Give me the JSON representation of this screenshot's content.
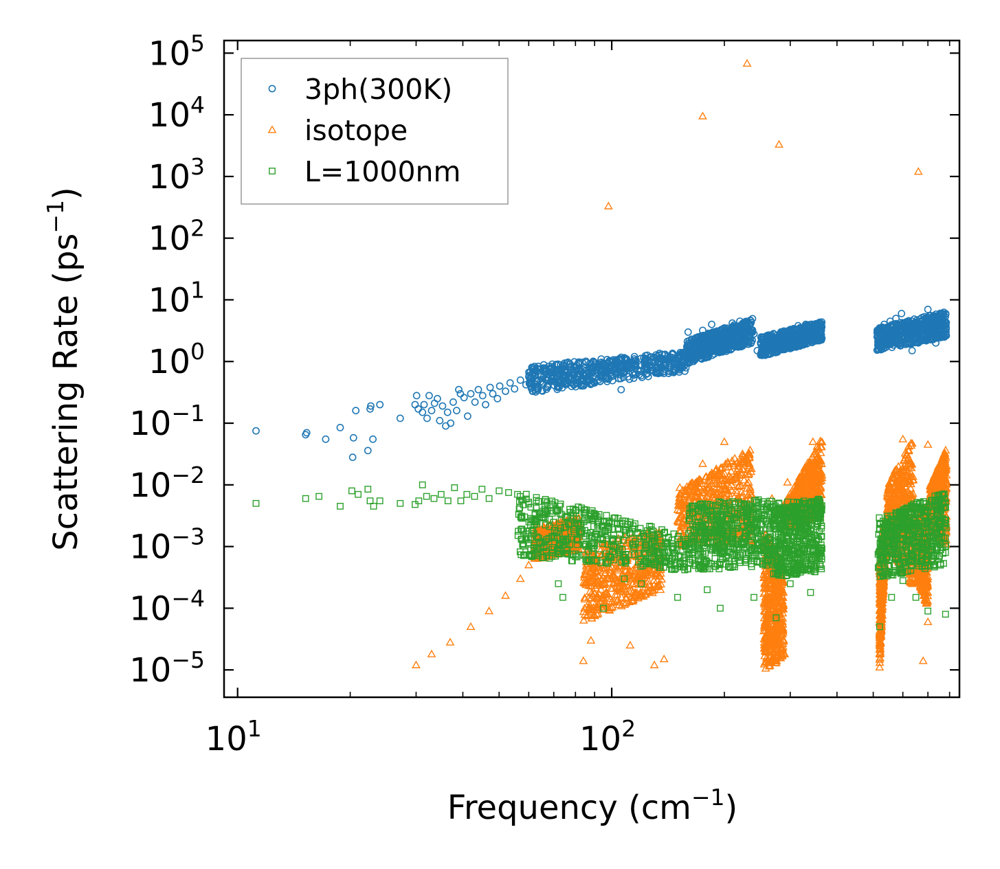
{
  "chart_data": {
    "type": "scatter",
    "title": "",
    "xlabel": "Frequency (cm",
    "xlabel_sup": "−1",
    "xlabel_end": ")",
    "ylabel": "Scattering Rate (ps",
    "ylabel_sup": "−1",
    "ylabel_end": ")",
    "xscale": "log",
    "yscale": "log",
    "xlim": [
      9.2,
      850
    ],
    "ylim": [
      3.6e-06,
      160000.0
    ],
    "grid": false,
    "legend_position": "top-left",
    "x_ticks": [
      {
        "value": 10,
        "base": "10",
        "exp": "1"
      },
      {
        "value": 100,
        "base": "10",
        "exp": "2"
      }
    ],
    "y_ticks": [
      {
        "value": 1e-05,
        "base": "10",
        "exp": "−5"
      },
      {
        "value": 0.0001,
        "base": "10",
        "exp": "−4"
      },
      {
        "value": 0.001,
        "base": "10",
        "exp": "−3"
      },
      {
        "value": 0.01,
        "base": "10",
        "exp": "−2"
      },
      {
        "value": 0.1,
        "base": "10",
        "exp": "−1"
      },
      {
        "value": 1.0,
        "base": "10",
        "exp": "0"
      },
      {
        "value": 10.0,
        "base": "10",
        "exp": "1"
      },
      {
        "value": 100.0,
        "base": "10",
        "exp": "2"
      },
      {
        "value": 1000.0,
        "base": "10",
        "exp": "3"
      },
      {
        "value": 10000.0,
        "base": "10",
        "exp": "4"
      },
      {
        "value": 100000.0,
        "base": "10",
        "exp": "5"
      }
    ],
    "series": [
      {
        "name": "3ph(300K)",
        "marker": "circle",
        "color": "#1f77b4",
        "points": [
          [
            11.2,
            0.075
          ],
          [
            15.2,
            0.065
          ],
          [
            15.3,
            0.07
          ],
          [
            17.2,
            0.055
          ],
          [
            18.8,
            0.085
          ],
          [
            20.3,
            0.028
          ],
          [
            20.4,
            0.058
          ],
          [
            20.7,
            0.16
          ],
          [
            22.3,
            0.036
          ],
          [
            22.6,
            0.17
          ],
          [
            22.7,
            0.19
          ],
          [
            23.0,
            0.055
          ],
          [
            24.0,
            0.2
          ],
          [
            27.2,
            0.12
          ],
          [
            29.8,
            0.2
          ],
          [
            30.1,
            0.28
          ],
          [
            30.4,
            0.17
          ],
          [
            31.2,
            0.15
          ],
          [
            31.5,
            0.2
          ],
          [
            32.1,
            0.12
          ],
          [
            32.5,
            0.28
          ],
          [
            33.0,
            0.16
          ],
          [
            33.6,
            0.21
          ],
          [
            34.2,
            0.25
          ],
          [
            34.7,
            0.11
          ],
          [
            35.3,
            0.19
          ],
          [
            36.0,
            0.09
          ],
          [
            36.4,
            0.15
          ],
          [
            37.1,
            0.1
          ],
          [
            37.7,
            0.22
          ],
          [
            38.5,
            0.16
          ],
          [
            39.0,
            0.35
          ],
          [
            39.4,
            0.3
          ],
          [
            40.3,
            0.26
          ],
          [
            41.2,
            0.13
          ],
          [
            42.0,
            0.3
          ],
          [
            43.1,
            0.22
          ],
          [
            44.0,
            0.35
          ],
          [
            45.2,
            0.28
          ],
          [
            46.0,
            0.2
          ],
          [
            47.3,
            0.38
          ],
          [
            48.1,
            0.3
          ],
          [
            49.5,
            0.25
          ],
          [
            50.2,
            0.4
          ],
          [
            52.0,
            0.33
          ],
          [
            53.5,
            0.45
          ],
          [
            55.0,
            0.36
          ],
          [
            57.0,
            0.5
          ],
          [
            59.0,
            0.42
          ],
          [
            61.0,
            0.55
          ],
          [
            63.0,
            0.48
          ],
          [
            66.0,
            0.6
          ],
          [
            69.0,
            0.52
          ],
          [
            72.0,
            0.7
          ],
          [
            75.0,
            0.6
          ],
          [
            78.0,
            0.75
          ],
          [
            81.0,
            0.5
          ],
          [
            85.0,
            0.8
          ],
          [
            88.0,
            0.65
          ],
          [
            90.0,
            0.45
          ],
          [
            92.0,
            0.9
          ],
          [
            96.0,
            0.7
          ],
          [
            100.0,
            1.0
          ],
          [
            104.0,
            0.8
          ],
          [
            106.0,
            0.35
          ],
          [
            110.0,
            0.9
          ],
          [
            115.0,
            1.1
          ],
          [
            120.0,
            0.85
          ],
          [
            126.0,
            1.0
          ],
          [
            132.0,
            1.2
          ],
          [
            138.0,
            0.9
          ],
          [
            145.0,
            1.3
          ],
          [
            150.0,
            1.0
          ],
          [
            155.0,
            1.4
          ],
          [
            160.0,
            3.0
          ],
          [
            165.0,
            1.8
          ],
          [
            170.0,
            2.5
          ],
          [
            175.0,
            3.2
          ],
          [
            180.0,
            2.2
          ],
          [
            185.0,
            4.0
          ],
          [
            190.0,
            3.0
          ],
          [
            200.0,
            3.5
          ],
          [
            210.0,
            4.2
          ],
          [
            220.0,
            4.5
          ],
          [
            230.0,
            3.8
          ],
          [
            240.0,
            2.8
          ],
          [
            245.0,
            1.5
          ],
          [
            255.0,
            1.6
          ],
          [
            265.0,
            1.8
          ],
          [
            275.0,
            2.2
          ],
          [
            290.0,
            2.8
          ],
          [
            300.0,
            3.3
          ],
          [
            315.0,
            3.8
          ],
          [
            330.0,
            4.0
          ],
          [
            345.0,
            3.6
          ],
          [
            360.0,
            3.5
          ],
          [
            520.0,
            3.5
          ],
          [
            535.0,
            4.0
          ],
          [
            555.0,
            4.5
          ],
          [
            575.0,
            5.0
          ],
          [
            595.0,
            6.0
          ],
          [
            615.0,
            3.0
          ],
          [
            635.0,
            1.5
          ],
          [
            660.0,
            2.0
          ],
          [
            685.0,
            3.5
          ],
          [
            700.0,
            7.0
          ],
          [
            718.0,
            3.0
          ],
          [
            735.0,
            2.0
          ],
          [
            755.0,
            3.0
          ],
          [
            775.0,
            2.5
          ]
        ],
        "bands": [
          {
            "x": [
              60,
              158
            ],
            "y_from": [
              0.3,
              0.7
            ],
            "y_to": [
              0.85,
              1.5
            ]
          },
          {
            "x": [
              158,
              238
            ],
            "y_from": [
              0.9,
              2.0
            ],
            "y_to": [
              2.2,
              5.0
            ]
          },
          {
            "x": [
              250,
              365
            ],
            "y_from": [
              1.2,
              2.2
            ],
            "y_to": [
              2.5,
              4.5
            ]
          },
          {
            "x": [
              512,
              785
            ],
            "y_from": [
              1.5,
              2.5
            ],
            "y_to": [
              3.5,
              6.5
            ]
          }
        ]
      },
      {
        "name": "isotope",
        "marker": "triangle",
        "color": "#ff7f0e",
        "points": [
          [
            98,
            330
          ],
          [
            175,
            9500
          ],
          [
            230,
            68000
          ],
          [
            280,
            3300
          ],
          [
            660,
            1200
          ],
          [
            30,
            1.2e-05
          ],
          [
            33,
            1.8e-05
          ],
          [
            37,
            2.8e-05
          ],
          [
            42,
            5e-05
          ],
          [
            47,
            9e-05
          ],
          [
            52,
            0.00016
          ],
          [
            57,
            0.0003
          ],
          [
            60,
            0.0005
          ],
          [
            84,
            1.4e-05
          ],
          [
            88,
            3e-05
          ],
          [
            95,
            0.00012
          ],
          [
            112,
            2.5e-05
          ],
          [
            130,
            1.2e-05
          ],
          [
            138,
            1.5e-05
          ],
          [
            280,
            8e-05
          ],
          [
            290,
            1.8e-05
          ],
          [
            520,
            1.1e-05
          ],
          [
            680,
            1.4e-05
          ],
          [
            700,
            6e-05
          ],
          [
            152,
            0.009
          ],
          [
            175,
            0.022
          ],
          [
            200,
            0.05
          ],
          [
            218,
            0.02
          ],
          [
            268,
            0.006
          ],
          [
            295,
            0.011
          ],
          [
            345,
            0.05
          ],
          [
            360,
            0.025
          ],
          [
            600,
            0.055
          ],
          [
            640,
            0.012
          ],
          [
            700,
            0.045
          ],
          [
            745,
            0.008
          ]
        ],
        "bands": [
          {
            "x": [
              62,
              82
            ],
            "y_from": [
              0.0006,
              0.0009
            ],
            "y_to": [
              0.002,
              0.003
            ]
          },
          {
            "x": [
              84,
              136
            ],
            "y_from": [
              6e-05,
              0.0002
            ],
            "y_to": [
              0.001,
              0.002
            ]
          },
          {
            "x": [
              150,
              238
            ],
            "y_from": [
              0.001,
              0.0012
            ],
            "y_to": [
              0.008,
              0.04
            ]
          },
          {
            "x": [
              255,
              288
            ],
            "y_from": [
              1e-05,
              1.5e-05
            ],
            "y_to": [
              0.002,
              0.0005
            ]
          },
          {
            "x": [
              290,
              365
            ],
            "y_from": [
              0.002,
              0.003
            ],
            "y_to": [
              0.005,
              0.06
            ]
          },
          {
            "x": [
              520,
              540
            ],
            "y_from": [
              1.1e-05,
              0.001
            ],
            "y_to": [
              0.0005,
              0.003
            ]
          },
          {
            "x": [
              545,
              640
            ],
            "y_from": [
              0.001,
              0.0002
            ],
            "y_to": [
              0.01,
              0.06
            ]
          },
          {
            "x": [
              655,
              700
            ],
            "y_from": [
              0.0003,
              0.0001
            ],
            "y_to": [
              0.003,
              0.005
            ]
          },
          {
            "x": [
              710,
              785
            ],
            "y_from": [
              0.002,
              0.001
            ],
            "y_to": [
              0.01,
              0.04
            ]
          }
        ]
      },
      {
        "name": "L=1000nm",
        "marker": "square",
        "color": "#2ca02c",
        "points": [
          [
            11.2,
            0.005
          ],
          [
            15.2,
            0.006
          ],
          [
            16.5,
            0.0065
          ],
          [
            18.8,
            0.0045
          ],
          [
            20.2,
            0.008
          ],
          [
            21.0,
            0.007
          ],
          [
            22.3,
            0.0085
          ],
          [
            22.6,
            0.0055
          ],
          [
            23.1,
            0.0045
          ],
          [
            24.0,
            0.0055
          ],
          [
            27.2,
            0.005
          ],
          [
            29.8,
            0.0048
          ],
          [
            30.5,
            0.0055
          ],
          [
            31.2,
            0.01
          ],
          [
            32.0,
            0.0065
          ],
          [
            33.5,
            0.006
          ],
          [
            35.0,
            0.007
          ],
          [
            36.5,
            0.0055
          ],
          [
            38.0,
            0.009
          ],
          [
            39.5,
            0.0055
          ],
          [
            41.0,
            0.007
          ],
          [
            43.0,
            0.0065
          ],
          [
            45.0,
            0.0085
          ],
          [
            47.0,
            0.006
          ],
          [
            50.0,
            0.008
          ],
          [
            53.0,
            0.0075
          ],
          [
            56.0,
            0.007
          ],
          [
            72,
            0.00025
          ],
          [
            74,
            0.00015
          ],
          [
            95,
            0.0001
          ],
          [
            108,
            0.0003
          ],
          [
            120,
            0.00025
          ],
          [
            150,
            0.00015
          ],
          [
            180,
            0.0002
          ],
          [
            195,
            0.0001
          ],
          [
            240,
            0.00015
          ],
          [
            275,
            7e-05
          ],
          [
            300,
            0.00025
          ],
          [
            340,
            0.00018
          ],
          [
            520,
            5e-05
          ],
          [
            560,
            0.00015
          ],
          [
            600,
            0.00028
          ],
          [
            650,
            0.00015
          ],
          [
            700,
            9e-05
          ],
          [
            780,
            8e-05
          ],
          [
            780,
            0.0008
          ]
        ],
        "bands": [
          {
            "x": [
              56,
              160
            ],
            "y_from": [
              0.008,
              0.0015
            ],
            "y_to": [
              0.0007,
              0.0004
            ]
          },
          {
            "x": [
              160,
              270
            ],
            "y_from": [
              0.005,
              0.006
            ],
            "y_to": [
              0.0004,
              0.0005
            ]
          },
          {
            "x": [
              270,
              365
            ],
            "y_from": [
              0.005,
              0.006
            ],
            "y_to": [
              0.0003,
              0.0004
            ]
          },
          {
            "x": [
              515,
              785
            ],
            "y_from": [
              0.003,
              0.008
            ],
            "y_to": [
              0.0003,
              0.0005
            ]
          }
        ]
      }
    ]
  }
}
